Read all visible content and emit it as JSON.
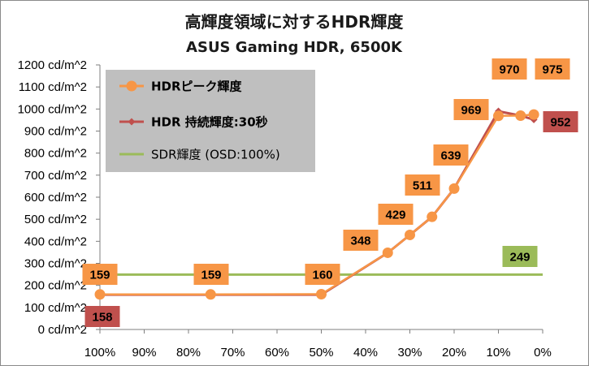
{
  "chart_data": {
    "type": "line",
    "title": "高輝度領域に対するHDR輝度",
    "subtitle": "ASUS Gaming HDR, 6500K",
    "xlabel": "",
    "ylabel": "",
    "x_ticks": [
      "100%",
      "90%",
      "80%",
      "70%",
      "60%",
      "50%",
      "40%",
      "30%",
      "20%",
      "10%",
      "0%"
    ],
    "xlim": [
      100,
      0
    ],
    "y_ticks": [
      "0 cd/m^2",
      "100 cd/m^2",
      "200 cd/m^2",
      "300 cd/m^2",
      "400 cd/m^2",
      "500 cd/m^2",
      "600 cd/m^2",
      "700 cd/m^2",
      "800 cd/m^2",
      "900 cd/m^2",
      "1000 cd/m^2",
      "1100 cd/m^2",
      "1200 cd/m^2"
    ],
    "ylim": [
      0,
      1200
    ],
    "grid": false,
    "legend_position": "top-left",
    "series": [
      {
        "name": "HDRピーク輝度",
        "color": "#f79646",
        "marker": "circle",
        "x": [
          100,
          75,
          50,
          35,
          30,
          25,
          20,
          10,
          5,
          2
        ],
        "values": [
          159,
          159,
          160,
          348,
          429,
          511,
          639,
          969,
          970,
          975
        ],
        "labels": [
          "159",
          "159",
          "160",
          "348",
          "429",
          "511",
          "639",
          "969",
          "970",
          "975"
        ]
      },
      {
        "name": "HDR 持続輝度:30秒",
        "color": "#c0504d",
        "marker": "diamond",
        "x": [
          100,
          75,
          50,
          35,
          30,
          25,
          20,
          10,
          5,
          2
        ],
        "values": [
          158,
          158,
          158,
          348,
          429,
          511,
          639,
          990,
          970,
          952
        ],
        "labels": [
          "158",
          null,
          null,
          null,
          null,
          null,
          null,
          null,
          null,
          "952"
        ]
      },
      {
        "name": "SDR輝度 (OSD:100%)",
        "color": "#9bbb59",
        "marker": "none",
        "x": [
          100,
          0
        ],
        "values": [
          249,
          249
        ],
        "labels": [
          null,
          "249"
        ]
      }
    ]
  }
}
